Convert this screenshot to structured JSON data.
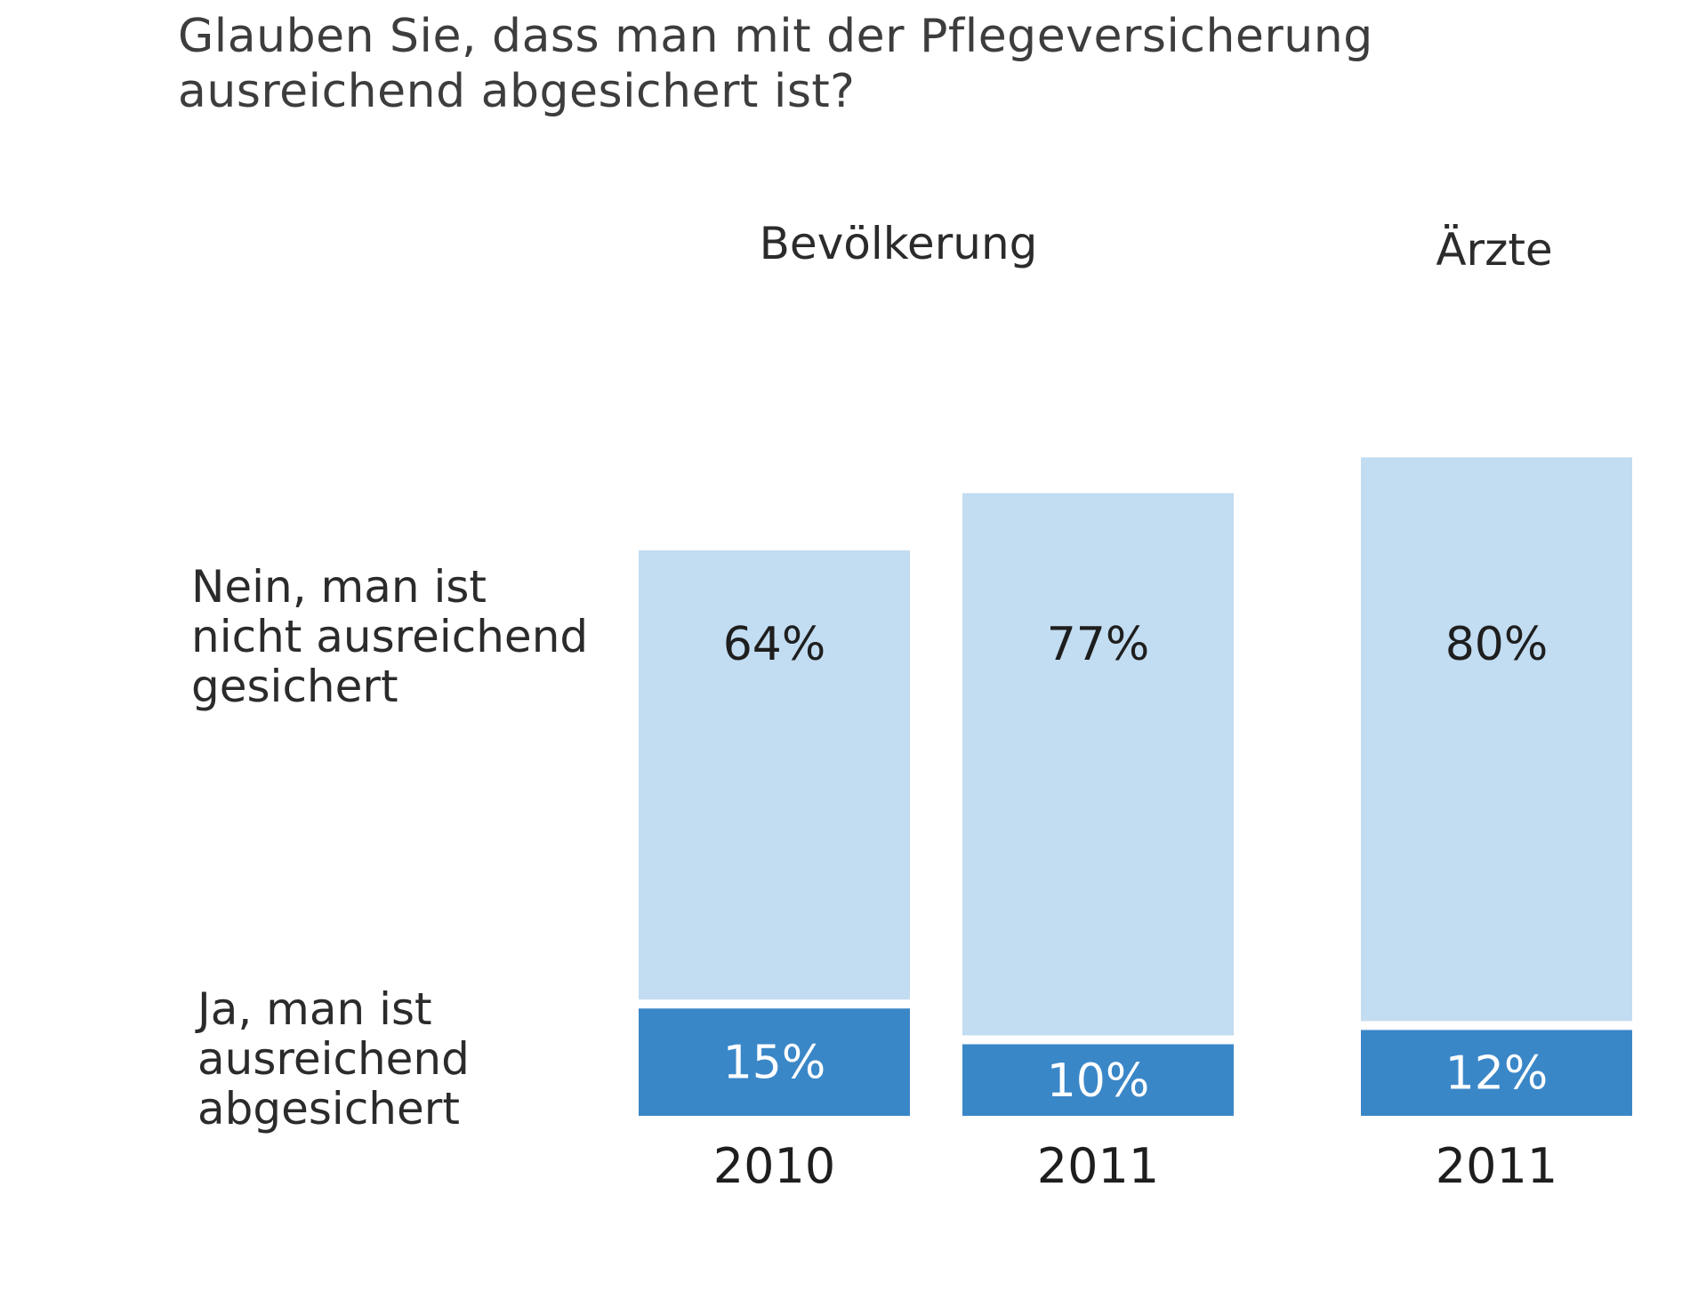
{
  "chart_data": {
    "type": "bar",
    "stacked": true,
    "title_lines": [
      "Glauben Sie, dass man mit der Pflegeversicherung",
      "ausreichend abgesichert ist?"
    ],
    "groups": [
      {
        "label": "Bevölkerung",
        "categories": [
          "2010",
          "2011"
        ]
      },
      {
        "label": "Ärzte",
        "categories": [
          "2011"
        ]
      }
    ],
    "categories": [
      "2010",
      "2011",
      "2011"
    ],
    "series": [
      {
        "name": "Ja, man ist ausreichend abgesichert",
        "name_lines": [
          "Ja, man ist",
          "ausreichend",
          "abgesichert"
        ],
        "values": [
          15,
          10,
          12
        ],
        "labels": [
          "15%",
          "10%",
          "12%"
        ],
        "color": "#3a87c8"
      },
      {
        "name": "Nein, man ist nicht ausreichend gesichert",
        "name_lines": [
          "Nein, man ist",
          "nicht ausreichend",
          "gesichert"
        ],
        "values": [
          64,
          77,
          80
        ],
        "labels": [
          "64%",
          "77%",
          "80%"
        ],
        "color": "#c2dcf1"
      }
    ],
    "ylim": [
      0,
      100
    ],
    "grid": false
  }
}
